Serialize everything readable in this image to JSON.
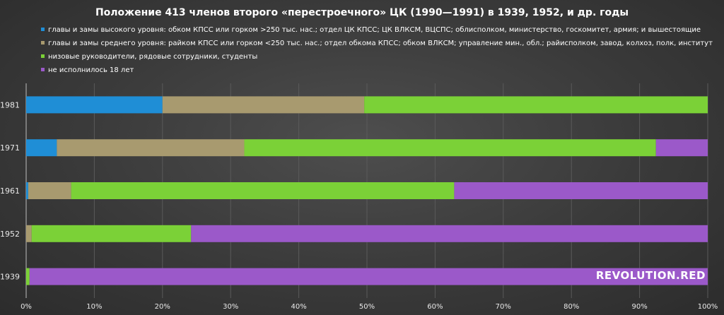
{
  "colors": {
    "high": "#1f8ed6",
    "mid": "#a89a6f",
    "low": "#7bd137",
    "minor": "#9b59c9"
  },
  "logo": "REVOLUTION.RED",
  "chart_data": {
    "type": "bar",
    "orientation": "horizontal",
    "stacked": true,
    "title": "Положение 413 членов второго «перестроечного» ЦК (1990—1991) в 1939, 1952, и др. годы",
    "categories": [
      "1981",
      "1971",
      "1961",
      "1952",
      "1939"
    ],
    "series": [
      {
        "name": "главы и замы высокого уровня: обком КПСС или горком >250 тыс. нас.; отдел ЦК КПСС; ЦК ВЛКСМ, ВЦСПС; облисполком, министерство, госкомитет, армия; и вышестоящие",
        "color_key": "high",
        "values": [
          20.0,
          4.5,
          0.3,
          0.0,
          0.0
        ]
      },
      {
        "name": "главы и замы среднего уровня: райком КПСС или горком <250 тыс. нас.; отдел обкома КПСС; обком ВЛКСМ; управление мин., обл.; райисполком, завод, колхоз, полк, институт",
        "color_key": "mid",
        "values": [
          29.6,
          27.5,
          6.3,
          0.8,
          0.0
        ]
      },
      {
        "name": "низовые руководители, рядовые сотрудники, студенты",
        "color_key": "low",
        "values": [
          50.4,
          60.4,
          56.2,
          23.4,
          0.5
        ]
      },
      {
        "name": "не исполнилось 18 лет",
        "color_key": "minor",
        "values": [
          0.0,
          7.6,
          37.2,
          75.8,
          99.5
        ]
      }
    ],
    "xlim": [
      0,
      100
    ],
    "xticks": [
      "0%",
      "10%",
      "20%",
      "30%",
      "40%",
      "50%",
      "60%",
      "70%",
      "80%",
      "90%",
      "100%"
    ],
    "xlabel": "",
    "ylabel": "",
    "legend_position": "top-left",
    "grid": "vertical"
  }
}
